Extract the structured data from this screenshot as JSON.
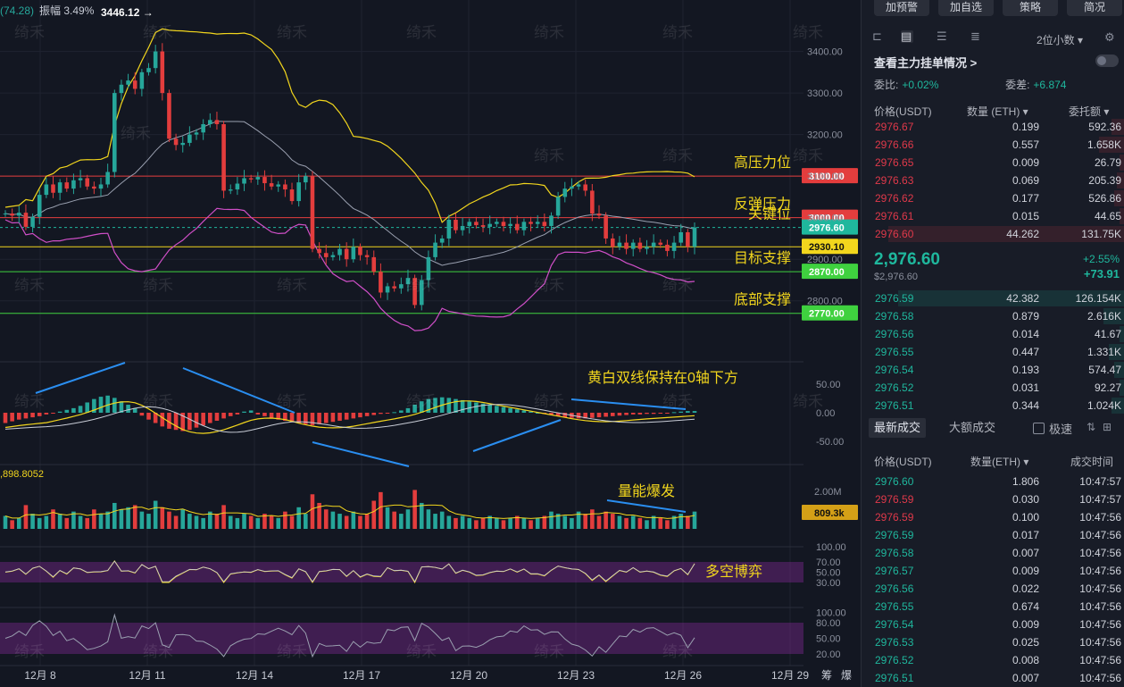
{
  "header": {
    "range_label": "(74.28)",
    "amplitude_label": "振幅 3.49%",
    "high_marker": "3446.12 →"
  },
  "chart_data": {
    "type": "candlestick",
    "title": "",
    "x_tick_labels": [
      "12月 8",
      "12月 11",
      "12月 14",
      "12月 17",
      "12月 20",
      "12月 23",
      "12月 26",
      "12月 29"
    ],
    "corner_labels": [
      "筹",
      "爆"
    ],
    "price_axis": {
      "ticks": [
        "3400.00",
        "3300.00",
        "3200.00",
        "3100.00",
        "3000.00",
        "2900.00",
        "2800.00"
      ],
      "ylim": [
        2750,
        3470
      ]
    },
    "candle_closes": [
      3010,
      3005,
      3012,
      2978,
      3002,
      3055,
      3080,
      3060,
      3085,
      3070,
      3090,
      3095,
      3075,
      3070,
      3080,
      3110,
      3300,
      3320,
      3330,
      3310,
      3350,
      3360,
      3400,
      3300,
      3190,
      3175,
      3180,
      3200,
      3205,
      3225,
      3235,
      3225,
      3065,
      3068,
      3082,
      3095,
      3092,
      3098,
      3083,
      3075,
      3080,
      3068,
      3040,
      3085,
      3100,
      2925,
      2915,
      2905,
      2910,
      2925,
      2900,
      2930,
      2910,
      2905,
      2870,
      2820,
      2835,
      2830,
      2840,
      2855,
      2790,
      2850,
      2905,
      2940,
      2950,
      2995,
      2970,
      2980,
      2990,
      2982,
      2978,
      2985,
      2990,
      2980,
      2985,
      2970,
      2990,
      2985,
      2990,
      2980,
      3005,
      3050,
      3070,
      3075,
      3080,
      3065,
      3010,
      3005,
      2950,
      2930,
      2940,
      2925,
      2940,
      2925,
      2930,
      2940,
      2935,
      2920,
      2940,
      2965,
      2930,
      2976.6
    ],
    "levels": [
      {
        "label": "高压力位",
        "value": 3100.0,
        "tag": "3100.00",
        "color": "#e33d3d"
      },
      {
        "label": "反弹压力",
        "value": 3000.0,
        "tag": "3000.00",
        "color": "#e33d3d"
      },
      {
        "label": "关键位",
        "value": 2976.6,
        "tag": "2976.60",
        "color": "#1fb79d"
      },
      {
        "label": "",
        "value": 2930.1,
        "tag": "2930.10",
        "color": "#f2d61d"
      },
      {
        "label": "目标支撑",
        "value": 2870.0,
        "tag": "2870.00",
        "color": "#3fd13f"
      },
      {
        "label": "底部支撑",
        "value": 2770.0,
        "tag": "2770.00",
        "color": "#3fd13f"
      }
    ],
    "bollinger": {
      "upper_color": "#f2d61d",
      "mid_color": "#9aa0b0",
      "lower_color": "#d04fc8"
    },
    "macd": {
      "ticks": [
        "50.00",
        "0.00",
        "-50.00"
      ],
      "annotation": "黄白双线保持在0轴下方",
      "histogram": [
        -18,
        -15,
        -12,
        -10,
        -8,
        -6,
        -3,
        -1,
        2,
        5,
        8,
        12,
        18,
        24,
        28,
        30,
        26,
        20,
        14,
        8,
        -5,
        -12,
        -18,
        -24,
        -28,
        -30,
        -32,
        -30,
        -26,
        -22,
        -18,
        -14,
        -10,
        -6,
        -3,
        2,
        4,
        -3,
        -6,
        -9,
        -12,
        -14,
        -16,
        -18,
        -20,
        -22,
        -20,
        -18,
        -16,
        -14,
        -12,
        -10,
        -8,
        -6,
        -4,
        -2,
        -1,
        1,
        4,
        8,
        14,
        20,
        24,
        26,
        27,
        26,
        24,
        22,
        20,
        18,
        16,
        14,
        12,
        10,
        8,
        6,
        4,
        2,
        0,
        -2,
        -4,
        -6,
        -8,
        -9,
        -10,
        -10,
        -9,
        -8,
        -7,
        -6,
        -5,
        -4,
        -3,
        -3,
        -2,
        -2,
        -1,
        -1,
        1,
        2,
        3,
        3
      ],
      "dif_color": "#f2d61d",
      "dea_color": "#c8ccd6"
    },
    "volume": {
      "ticks": [
        "2.00M"
      ],
      "left_label": ",898.8052",
      "current": "809.3k",
      "annotation": "量能爆发",
      "values": [
        0.6,
        0.4,
        0.5,
        1.1,
        0.7,
        0.5,
        0.6,
        0.9,
        0.7,
        0.5,
        0.8,
        0.6,
        0.5,
        0.9,
        0.7,
        0.8,
        1.2,
        0.9,
        1.0,
        1.1,
        0.8,
        0.7,
        1.3,
        1.0,
        0.8,
        0.6,
        0.9,
        0.7,
        0.6,
        0.5,
        0.8,
        0.7,
        1.1,
        0.6,
        0.5,
        0.7,
        0.6,
        0.5,
        0.7,
        0.6,
        0.5,
        0.8,
        0.6,
        1.0,
        0.7,
        1.6,
        1.2,
        0.9,
        0.8,
        0.7,
        0.6,
        0.8,
        0.6,
        0.7,
        1.3,
        1.7,
        1.0,
        0.8,
        0.7,
        0.9,
        1.8,
        1.2,
        0.9,
        0.7,
        0.8,
        0.6,
        0.5,
        0.6,
        0.5,
        0.4,
        0.5,
        0.6,
        0.5,
        0.4,
        0.5,
        0.6,
        0.5,
        0.4,
        0.5,
        0.6,
        0.8,
        0.7,
        0.6,
        0.5,
        0.8,
        0.7,
        0.9,
        0.6,
        0.8,
        0.7,
        0.6,
        0.5,
        0.6,
        0.5,
        0.4,
        0.6,
        0.5,
        0.4,
        0.6,
        0.7,
        0.6,
        0.8
      ]
    },
    "rsi": {
      "ticks": [
        "100.00",
        "70.00",
        "50.00",
        "30.00"
      ],
      "annotation": "多空博弈"
    },
    "kdj": {
      "ticks": [
        "100.00",
        "80.00",
        "50.00",
        "20.00"
      ]
    }
  },
  "panel": {
    "buttons": [
      "加预警",
      "加自选",
      "策略",
      "简况"
    ],
    "decimals": "2位小数 ▾",
    "main_orders_link": "查看主力挂单情况 >",
    "ratio_label": "委比:",
    "ratio_value": "+0.02%",
    "diff_label": "委差:",
    "diff_value": "+6.874",
    "ob_headers": [
      "价格(USDT)",
      "数量 (ETH) ▾",
      "委托额 ▾"
    ],
    "asks": [
      {
        "price": "2976.67",
        "qty": "0.199",
        "total": "592.36",
        "depth": 0.05
      },
      {
        "price": "2976.66",
        "qty": "0.557",
        "total": "1.658K",
        "depth": 0.1
      },
      {
        "price": "2976.65",
        "qty": "0.009",
        "total": "26.79",
        "depth": 0.02
      },
      {
        "price": "2976.63",
        "qty": "0.069",
        "total": "205.39",
        "depth": 0.03
      },
      {
        "price": "2976.62",
        "qty": "0.177",
        "total": "526.86",
        "depth": 0.04
      },
      {
        "price": "2976.61",
        "qty": "0.015",
        "total": "44.65",
        "depth": 0.02
      },
      {
        "price": "2976.60",
        "qty": "44.262",
        "total": "131.75K",
        "depth": 0.9
      }
    ],
    "mid_price": "2,976.60",
    "mid_sub": "$2,976.60",
    "mid_pct": "+2.55%",
    "mid_abs": "+73.91",
    "bids": [
      {
        "price": "2976.59",
        "qty": "42.382",
        "total": "126.154K",
        "depth": 0.86
      },
      {
        "price": "2976.58",
        "qty": "0.879",
        "total": "2.616K",
        "depth": 0.08
      },
      {
        "price": "2976.56",
        "qty": "0.014",
        "total": "41.67",
        "depth": 0.02
      },
      {
        "price": "2976.55",
        "qty": "0.447",
        "total": "1.331K",
        "depth": 0.06
      },
      {
        "price": "2976.54",
        "qty": "0.193",
        "total": "574.47",
        "depth": 0.04
      },
      {
        "price": "2976.52",
        "qty": "0.031",
        "total": "92.27",
        "depth": 0.02
      },
      {
        "price": "2976.51",
        "qty": "0.344",
        "total": "1.024K",
        "depth": 0.05
      }
    ],
    "tab_latest": "最新成交",
    "tab_large": "大额成交",
    "fast_label": "极速",
    "trade_headers": [
      "价格(USDT)",
      "数量(ETH) ▾",
      "成交时间"
    ],
    "trades": [
      {
        "price": "2976.60",
        "qty": "1.806",
        "time": "10:47:57",
        "side": "buy"
      },
      {
        "price": "2976.59",
        "qty": "0.030",
        "time": "10:47:57",
        "side": "sell"
      },
      {
        "price": "2976.59",
        "qty": "0.100",
        "time": "10:47:56",
        "side": "sell"
      },
      {
        "price": "2976.59",
        "qty": "0.017",
        "time": "10:47:56",
        "side": "buy"
      },
      {
        "price": "2976.58",
        "qty": "0.007",
        "time": "10:47:56",
        "side": "buy"
      },
      {
        "price": "2976.57",
        "qty": "0.009",
        "time": "10:47:56",
        "side": "buy"
      },
      {
        "price": "2976.56",
        "qty": "0.022",
        "time": "10:47:56",
        "side": "buy"
      },
      {
        "price": "2976.55",
        "qty": "0.674",
        "time": "10:47:56",
        "side": "buy"
      },
      {
        "price": "2976.54",
        "qty": "0.009",
        "time": "10:47:56",
        "side": "buy"
      },
      {
        "price": "2976.53",
        "qty": "0.025",
        "time": "10:47:56",
        "side": "buy"
      },
      {
        "price": "2976.52",
        "qty": "0.008",
        "time": "10:47:56",
        "side": "buy"
      },
      {
        "price": "2976.51",
        "qty": "0.007",
        "time": "10:47:56",
        "side": "buy"
      }
    ]
  },
  "watermark": "绮禾"
}
